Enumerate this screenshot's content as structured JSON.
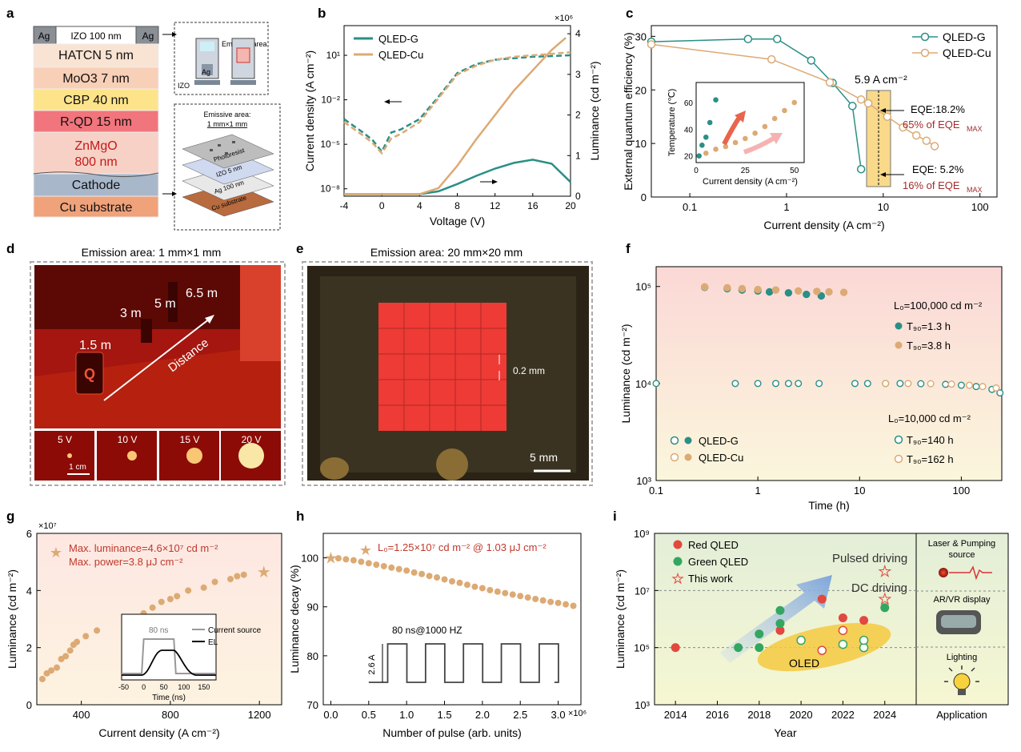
{
  "panels": {
    "a": {
      "letter": "a",
      "layers": [
        {
          "label": "HATCN 5 nm",
          "color": "#f9e3d2"
        },
        {
          "label": "MoO3 7 nm",
          "color": "#f8cfb7"
        },
        {
          "label": "CBP 40 nm",
          "color": "#fde48a"
        },
        {
          "label": "R-QD 15 nm",
          "color": "#f1757c"
        },
        {
          "label": "ZnMgO",
          "sub": "800 nm",
          "color": "#f7d1c6"
        },
        {
          "label": "Cathode",
          "color": "#a9b7cb"
        },
        {
          "label": "Cu substrate",
          "color": "#f0a27a"
        }
      ],
      "top_left": "Ag",
      "top_mid": "IZO 100 nm",
      "top_right": "Ag",
      "emissive_area": "Emissive area",
      "ag": "Ag",
      "izo": "IZO",
      "box2_title1": "Emissive area:",
      "box2_title2": "1 mm×1 mm",
      "stack_layers": [
        "Photoresist",
        "IZO 5 nm",
        "Ag 100 nm",
        "Cu substrate"
      ]
    },
    "b": {
      "letter": "b",
      "legend": [
        "QLED-G",
        "QLED-Cu"
      ],
      "xlabel": "Voltage (V)",
      "ylabel_left": "Current density (A cm⁻²)",
      "ylabel_right": "Luminance (cd m⁻²)",
      "multiplier": "×10⁶",
      "xticks": [
        "-4",
        "0",
        "4",
        "8",
        "12",
        "16",
        "20"
      ],
      "yticks_left": [
        "10¹",
        "10⁻²",
        "10⁻⁵",
        "10⁻⁸"
      ],
      "yticks_right": [
        "4",
        "3",
        "2",
        "1",
        "0"
      ]
    },
    "c": {
      "letter": "c",
      "legend": [
        "QLED-G",
        "QLED-Cu"
      ],
      "xlabel": "Current density (A cm⁻²)",
      "ylabel": "External quantum efficiency (%)",
      "xticks": [
        "0.1",
        "1",
        "10",
        "100"
      ],
      "yticks": [
        "30",
        "20",
        "10",
        "0"
      ],
      "ann_current": "5.9 A cm⁻²",
      "ann_eqe1": "EQE:18.2%",
      "ann_pct1": "65% of EQE",
      "ann_eqe2": "EQE: 5.2%",
      "ann_pct2": "16% of EQE",
      "max_sub": "MAX",
      "inset_xlabel": "Current density (A cm⁻²)",
      "inset_ylabel": "Temperature (℃)",
      "inset_xticks": [
        "0",
        "25",
        "50"
      ],
      "inset_yticks": [
        "60",
        "40",
        "20"
      ]
    },
    "d": {
      "letter": "d",
      "title": "Emission area: 1 mm×1 mm",
      "distances": [
        "1.5 m",
        "3 m",
        "5 m",
        "6.5 m"
      ],
      "distance_label": "Distance",
      "voltages": [
        "5 V",
        "10 V",
        "15 V",
        "20 V"
      ],
      "scale": "1 cm",
      "letter_q": "Q"
    },
    "e": {
      "letter": "e",
      "title": "Emission area: 20 mm×20 mm",
      "gap": "0.2 mm",
      "scale": "5 mm"
    },
    "f": {
      "letter": "f",
      "xlabel": "Time (h)",
      "ylabel": "Luminance (cd m⁻²)",
      "xticks": [
        "0.1",
        "1",
        "10",
        "100"
      ],
      "yticks": [
        "10⁵",
        "10⁴",
        "10³"
      ],
      "l0_high": "L₀=100,000 cd m⁻²",
      "t90_g_high": "T₉₀=1.3 h",
      "t90_cu_high": "T₉₀=3.8 h",
      "l0_low": "L₀=10,000 cd m⁻²",
      "t90_g_low": "T₉₀=140 h",
      "t90_cu_low": "T₉₀=162 h",
      "legend": [
        "QLED-G",
        "QLED-Cu"
      ]
    },
    "g": {
      "letter": "g",
      "xlabel": "Current density (A cm⁻²)",
      "ylabel": "Luminance (cd m⁻²)",
      "multiplier": "×10⁷",
      "xticks": [
        "400",
        "800",
        "1200"
      ],
      "yticks": [
        "6",
        "4",
        "2",
        "0"
      ],
      "ann1": "Max. luminance=4.6×10⁷ cd m⁻²",
      "ann2": "Max. power=3.8 μJ cm⁻²",
      "inset_legend": [
        "Current source",
        "EL"
      ],
      "inset_80": "80 ns",
      "inset_xlabel": "Time (ns)",
      "inset_xticks": [
        "-50",
        "0",
        "50",
        "100",
        "150"
      ]
    },
    "h": {
      "letter": "h",
      "xlabel": "Number of pulse (arb. units)",
      "ylabel": "Luminance decay (%)",
      "multiplier": "×10⁶",
      "xticks": [
        "0.0",
        "0.5",
        "1.0",
        "1.5",
        "2.0",
        "2.5",
        "3.0"
      ],
      "yticks": [
        "100",
        "90",
        "80",
        "70"
      ],
      "ann": "L₀=1.25×10⁷ cd m⁻² @ 1.03 μJ cm⁻²",
      "pulse_label": "80 ns@1000 HZ",
      "amp": "2.6 A"
    },
    "i": {
      "letter": "i",
      "xlabel": "Year",
      "ylabel": "Luminance (cd m⁻²)",
      "xticks": [
        "2014",
        "2016",
        "2018",
        "2020",
        "2022",
        "2024"
      ],
      "yticks": [
        "10⁹",
        "10⁷",
        "10⁵",
        "10³"
      ],
      "legend": [
        "Red QLED",
        "Green QLED",
        "This work"
      ],
      "pulsed": "Pulsed driving",
      "dc": "DC driving",
      "oled": "OLED",
      "apps": [
        "Laser & Pumping",
        "source",
        "AR/VR display",
        "Lighting"
      ],
      "app_label": "Application"
    }
  },
  "chart_data": [
    {
      "type": "line",
      "panel": "b",
      "xlabel": "Voltage (V)",
      "xlim": [
        -4,
        20
      ],
      "series": [
        {
          "name": "QLED-G",
          "axis": "left",
          "x": [
            -4,
            -2,
            -1,
            0,
            1,
            2,
            4,
            6,
            8,
            10,
            12,
            14,
            16,
            18,
            20
          ],
          "y": [
            -3.3,
            -4.2,
            -4.7,
            -5.5,
            -4.2,
            -4.0,
            -3.3,
            -1.8,
            -0.2,
            0.4,
            0.7,
            0.8,
            0.9,
            0.95,
            1.0
          ]
        },
        {
          "name": "QLED-Cu",
          "axis": "left",
          "x": [
            -4,
            -2,
            -1,
            0,
            1,
            2,
            4,
            6,
            8,
            10,
            12,
            14,
            16,
            18,
            20
          ],
          "y": [
            -3.5,
            -4.4,
            -4.9,
            -5.6,
            -4.6,
            -4.3,
            -3.5,
            -1.9,
            -0.3,
            0.3,
            0.7,
            0.9,
            1.0,
            1.1,
            1.2
          ]
        },
        {
          "name": "QLED-G",
          "axis": "right",
          "x": [
            -4,
            4,
            6,
            8,
            10,
            12,
            14,
            16,
            18,
            20
          ],
          "y": [
            0.05,
            0.05,
            0.12,
            0.3,
            0.5,
            0.68,
            0.82,
            0.9,
            0.8,
            0.35
          ]
        },
        {
          "name": "QLED-Cu",
          "axis": "right",
          "x": [
            -4,
            4,
            6,
            8,
            10,
            12,
            14,
            16,
            18,
            19.5
          ],
          "y": [
            0.05,
            0.05,
            0.2,
            0.75,
            1.4,
            2.0,
            2.6,
            3.1,
            3.6,
            3.9
          ]
        }
      ]
    },
    {
      "type": "line",
      "panel": "c",
      "xlabel": "Current density (A cm⁻²)",
      "ylabel": "External quantum efficiency (%)",
      "xscale": "log",
      "xlim": [
        0.04,
        100
      ],
      "ylim": [
        0,
        32
      ],
      "series": [
        {
          "name": "QLED-G",
          "x": [
            0.04,
            0.4,
            0.8,
            1.8,
            3.0,
            4.8,
            5.9
          ],
          "y": [
            29,
            29.5,
            29.5,
            25.5,
            21.3,
            17,
            5.2
          ]
        },
        {
          "name": "QLED-Cu",
          "x": [
            0.04,
            0.7,
            2.8,
            5.9,
            7.0,
            11,
            16,
            22,
            28,
            34
          ],
          "y": [
            28.5,
            25.7,
            21.4,
            18.2,
            17.5,
            15,
            13,
            11.5,
            10.5,
            9.5
          ]
        }
      ]
    },
    {
      "type": "scatter",
      "panel": "c-inset",
      "xlabel": "Current density (A cm⁻²)",
      "ylabel": "Temperature (℃)",
      "xlim": [
        0,
        55
      ],
      "ylim": [
        15,
        75
      ],
      "series": [
        {
          "name": "QLED-G",
          "x": [
            1.5,
            3,
            5,
            7,
            10
          ],
          "y": [
            20,
            28,
            34,
            45,
            62
          ]
        },
        {
          "name": "QLED-Cu",
          "x": [
            5,
            10,
            15,
            20,
            25,
            30,
            35,
            40,
            45,
            50
          ],
          "y": [
            22,
            25,
            27,
            30,
            33,
            37,
            42,
            48,
            54,
            60
          ]
        }
      ]
    },
    {
      "type": "scatter",
      "panel": "f",
      "xscale": "log",
      "yscale": "log",
      "xlim": [
        0.1,
        250
      ],
      "ylim": [
        1000,
        150000
      ],
      "series": [
        {
          "name": "QLED-G L0=100,000",
          "x": [
            0.3,
            0.5,
            0.7,
            1.0,
            1.3,
            2.0,
            3.0,
            4.2
          ],
          "y": [
            98000,
            95000,
            92000,
            90000,
            88000,
            86000,
            83000,
            80000
          ]
        },
        {
          "name": "QLED-Cu L0=100,000",
          "x": [
            0.3,
            0.5,
            0.7,
            1.0,
            1.5,
            2.5,
            3.8,
            5.0,
            7.0
          ],
          "y": [
            99000,
            97000,
            95000,
            93000,
            92000,
            90000,
            89000,
            88000,
            87000
          ]
        },
        {
          "name": "QLED-G L0=10,000",
          "x": [
            0.1,
            0.6,
            1.0,
            1.5,
            2.0,
            2.5,
            4.0,
            9.0,
            12,
            18,
            25,
            40,
            70,
            100,
            140,
            200,
            240
          ],
          "y": [
            10000,
            10000,
            10000,
            10000,
            10000,
            10000,
            10000,
            10000,
            10000,
            10000,
            10000,
            9950,
            9800,
            9600,
            9300,
            8700,
            8000
          ]
        },
        {
          "name": "QLED-Cu L0=10,000",
          "x": [
            18,
            30,
            50,
            80,
            120,
            162,
            220
          ],
          "y": [
            10000,
            10000,
            9950,
            9850,
            9600,
            9300,
            9000
          ]
        }
      ]
    },
    {
      "type": "scatter",
      "panel": "g",
      "xlabel": "Current density (A cm⁻²)",
      "ylabel": "Luminance (cd m⁻²)",
      "xlim": [
        200,
        1300
      ],
      "ylim": [
        0,
        6
      ],
      "series": [
        {
          "name": "Luminance ×10⁷",
          "x": [
            225,
            245,
            265,
            290,
            310,
            330,
            350,
            365,
            380,
            420,
            470,
            600,
            640,
            680,
            720,
            760,
            800,
            830,
            880,
            950,
            1000,
            1070,
            1100,
            1130,
            1220
          ],
          "y": [
            0.9,
            1.1,
            1.2,
            1.3,
            1.6,
            1.7,
            1.9,
            2.1,
            2.2,
            2.4,
            2.6,
            2.9,
            3.0,
            3.2,
            3.4,
            3.6,
            3.7,
            3.8,
            4.0,
            4.1,
            4.3,
            4.4,
            4.5,
            4.55,
            4.65
          ]
        }
      ]
    },
    {
      "type": "scatter",
      "panel": "h",
      "xlabel": "Number of pulse (arb. units)",
      "ylabel": "Luminance decay (%)",
      "xlim": [
        -0.1,
        3.3
      ],
      "ylim": [
        70,
        105
      ],
      "series": [
        {
          "name": "Luminance decay",
          "x": [
            0.0,
            0.1,
            0.2,
            0.3,
            0.4,
            0.5,
            0.6,
            0.7,
            0.8,
            0.9,
            1.0,
            1.1,
            1.2,
            1.3,
            1.4,
            1.5,
            1.6,
            1.7,
            1.8,
            1.9,
            2.0,
            2.1,
            2.2,
            2.3,
            2.4,
            2.5,
            2.6,
            2.7,
            2.8,
            2.9,
            3.0,
            3.1,
            3.2
          ],
          "y": [
            100.0,
            99.9,
            99.7,
            99.5,
            99.2,
            98.9,
            98.6,
            98.3,
            98.0,
            97.7,
            97.4,
            97.0,
            96.7,
            96.3,
            96.0,
            95.6,
            95.2,
            94.9,
            94.5,
            94.1,
            93.8,
            93.4,
            93.1,
            92.8,
            92.5,
            92.2,
            91.9,
            91.6,
            91.3,
            91.0,
            90.8,
            90.5,
            90.2
          ]
        }
      ]
    },
    {
      "type": "scatter",
      "panel": "i",
      "xlabel": "Year",
      "ylabel": "Luminance (cd m⁻²)",
      "yscale": "log",
      "xlim": [
        2013,
        2025.5
      ],
      "ylim": [
        1000,
        1000000000
      ],
      "series": [
        {
          "name": "Red QLED",
          "x": [
            2014,
            2019,
            2021,
            2022,
            2023
          ],
          "y": [
            100000,
            400000,
            5000000,
            1100000,
            900000
          ]
        },
        {
          "name": "Green QLED",
          "x": [
            2017,
            2018,
            2018,
            2019,
            2019,
            2024
          ],
          "y": [
            100000,
            100000,
            300000,
            700000,
            2000000,
            2500000
          ]
        },
        {
          "name": "OLED",
          "x": [
            2020,
            2021,
            2022,
            2022,
            2023,
            2023
          ],
          "y": [
            180000,
            80000,
            130000,
            400000,
            100000,
            180000
          ]
        },
        {
          "name": "This work",
          "x": [
            2024,
            2024
          ],
          "y": [
            46000000,
            5000000
          ]
        }
      ]
    }
  ]
}
